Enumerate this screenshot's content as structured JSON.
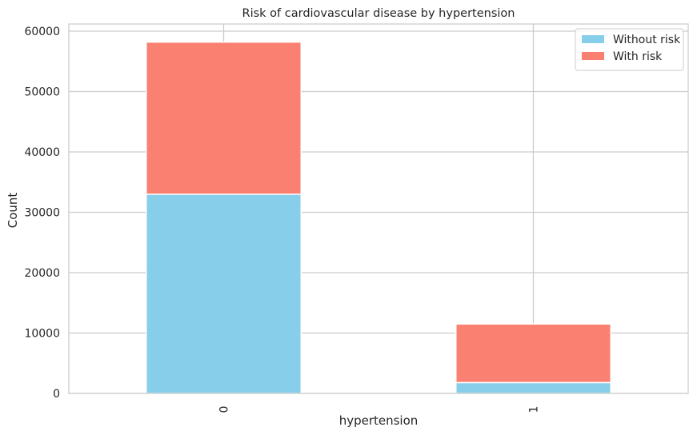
{
  "chart_data": {
    "type": "bar",
    "stacked": true,
    "title": "Risk of cardiovascular disease by hypertension",
    "xlabel": "hypertension",
    "ylabel": "Count",
    "categories": [
      "0",
      "1"
    ],
    "series": [
      {
        "name": "Without risk",
        "color": "#87ceeb",
        "values": [
          33000,
          1800
        ]
      },
      {
        "name": "With risk",
        "color": "#fa8072",
        "values": [
          25200,
          9700
        ]
      }
    ],
    "ylim": [
      0,
      61200
    ],
    "yticks": [
      0,
      10000,
      20000,
      30000,
      40000,
      50000,
      60000
    ],
    "grid": true,
    "legend_position": "top-right"
  }
}
